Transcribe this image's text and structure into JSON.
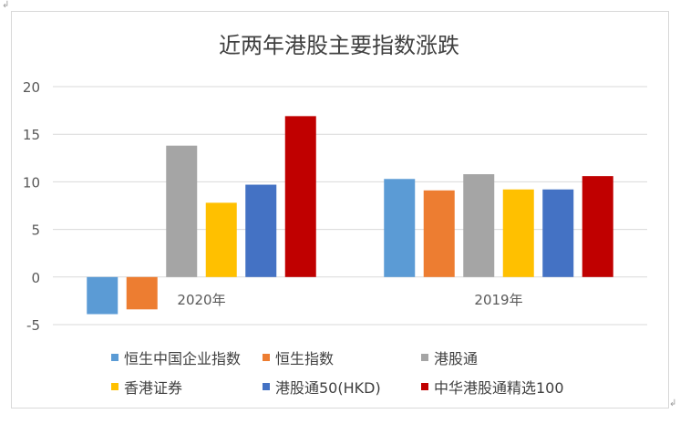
{
  "chart_data": {
    "type": "bar",
    "title": "近两年港股主要指数涨跌",
    "categories": [
      "2020年",
      "2019年"
    ],
    "ylim": [
      -5,
      20
    ],
    "yticks": [
      -5,
      0,
      5,
      10,
      15,
      20
    ],
    "grid": true,
    "legend_position": "bottom",
    "series": [
      {
        "name": "恒生中国企业指数",
        "color": "#5B9BD5",
        "values": [
          -3.9,
          10.3
        ]
      },
      {
        "name": "恒生指数",
        "color": "#ED7D31",
        "values": [
          -3.4,
          9.1
        ]
      },
      {
        "name": "港股通",
        "color": "#A5A5A5",
        "values": [
          13.8,
          10.8
        ]
      },
      {
        "name": "香港证券",
        "color": "#FFC000",
        "values": [
          7.8,
          9.2
        ]
      },
      {
        "name": "港股通50(HKD)",
        "color": "#4472C4",
        "values": [
          9.7,
          9.2
        ]
      },
      {
        "name": "中华港股通精选100",
        "color": "#C00000",
        "values": [
          16.9,
          10.6
        ]
      }
    ]
  },
  "marks": {
    "top_left": "↲",
    "bottom_right": "↲"
  }
}
